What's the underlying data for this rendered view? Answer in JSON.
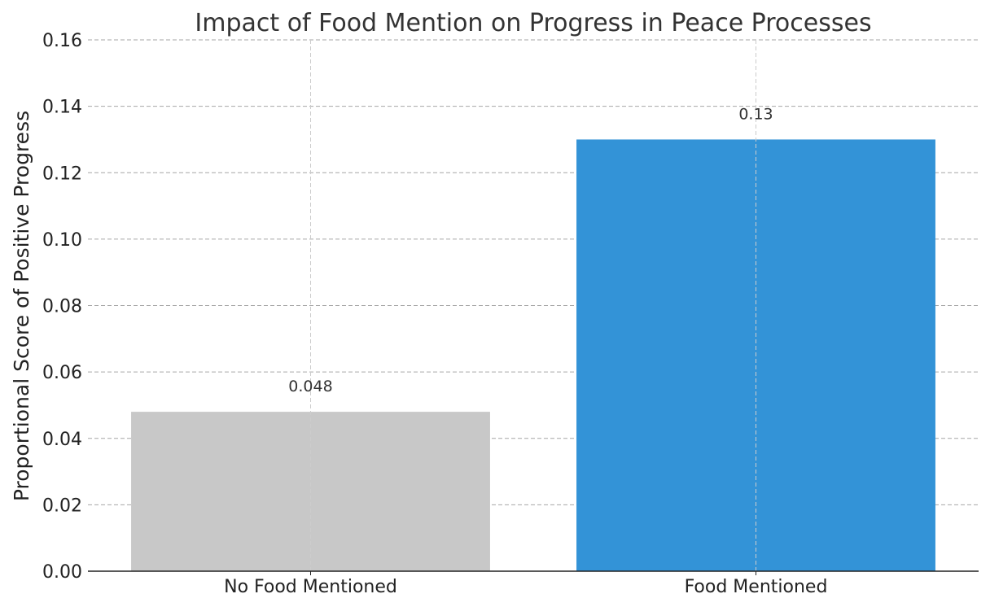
{
  "chart_data": {
    "type": "bar",
    "title": "Impact of Food Mention on Progress in Peace Processes",
    "xlabel": "",
    "ylabel": "Proportional Score of Positive Progress",
    "categories": [
      "No Food Mentioned",
      "Food Mentioned"
    ],
    "values": [
      0.048,
      0.13
    ],
    "value_labels": [
      "0.048",
      "0.13"
    ],
    "colors": [
      "#c8c8c8",
      "#3393d7"
    ],
    "ylim": [
      0,
      0.16
    ],
    "yticks": [
      0.0,
      0.02,
      0.04,
      0.06,
      0.08,
      0.1,
      0.12,
      0.14,
      0.16
    ],
    "ytick_labels": [
      "0.00",
      "0.02",
      "0.04",
      "0.06",
      "0.08",
      "0.10",
      "0.12",
      "0.14",
      "0.16"
    ],
    "grid": true,
    "legend": "none"
  }
}
